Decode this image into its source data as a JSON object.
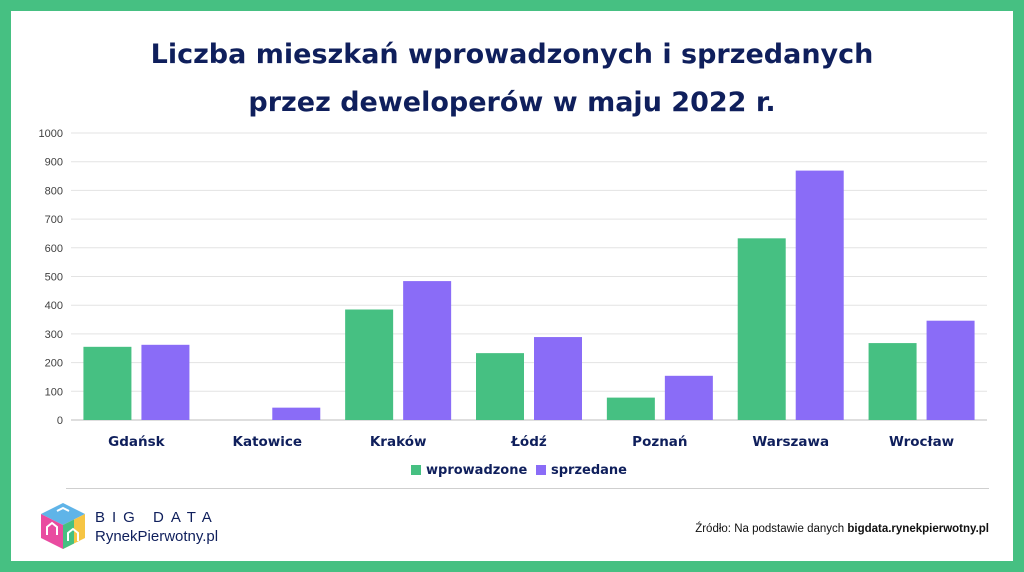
{
  "title": {
    "line1": "Liczba mieszkań wprowadzonych i sprzedanych",
    "line2": "przez deweloperów w maju 2022 r."
  },
  "colors": {
    "frame": "#46c082",
    "title": "#0f1f5c",
    "wprowadzone": "#46c082",
    "sprzedane": "#8a6cf7"
  },
  "chart_data": {
    "type": "bar",
    "categories": [
      "Gdańsk",
      "Katowice",
      "Kraków",
      "Łódź",
      "Poznań",
      "Warszawa",
      "Wrocław"
    ],
    "series": [
      {
        "name": "wprowadzone",
        "color": "#46c082",
        "values": [
          255,
          0,
          385,
          233,
          78,
          633,
          268
        ]
      },
      {
        "name": "sprzedane",
        "color": "#8a6cf7",
        "values": [
          262,
          43,
          484,
          289,
          154,
          869,
          346
        ]
      }
    ],
    "yticks": [
      "0",
      "100",
      "200",
      "300",
      "400",
      "500",
      "600",
      "700",
      "800",
      "900",
      "1000"
    ],
    "ylim": [
      0,
      1000
    ],
    "grid": true,
    "legend": "bottom"
  },
  "brand": {
    "line1": "BIG DATA",
    "line2": "RynekPierwotny.pl"
  },
  "source": {
    "prefix": "Źródło: Na podstawie danych ",
    "bold": "bigdata.rynekpierwotny.pl"
  }
}
